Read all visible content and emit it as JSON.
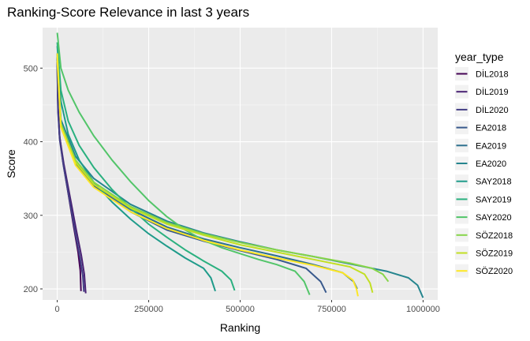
{
  "chart_data": {
    "type": "line",
    "title": "Ranking-Score Relevance in last 3 years",
    "xlabel": "Ranking",
    "ylabel": "Score",
    "xlim": [
      -40000,
      1040000
    ],
    "ylim": [
      185,
      555
    ],
    "x_ticks": [
      0,
      250000,
      500000,
      750000,
      1000000
    ],
    "x_tick_labels": [
      "0",
      "250000",
      "500000",
      "750000",
      "1000000"
    ],
    "y_ticks": [
      200,
      300,
      400,
      500
    ],
    "y_tick_labels": [
      "200",
      "300",
      "400",
      "500"
    ],
    "grid": true,
    "legend_title": "year_type",
    "legend_position": "right",
    "series": [
      {
        "name": "DİL2018",
        "color": "#440154",
        "max_rank": 65000,
        "start_score": 515,
        "end_score": 197,
        "points": [
          [
            0,
            515
          ],
          [
            2000,
            450
          ],
          [
            6000,
            410
          ],
          [
            15000,
            375
          ],
          [
            30000,
            330
          ],
          [
            45000,
            285
          ],
          [
            57000,
            250
          ],
          [
            63000,
            225
          ],
          [
            65000,
            197
          ]
        ]
      },
      {
        "name": "DİL2019",
        "color": "#482173",
        "max_rank": 78000,
        "start_score": 510,
        "end_score": 194,
        "points": [
          [
            0,
            510
          ],
          [
            2000,
            445
          ],
          [
            7000,
            405
          ],
          [
            18000,
            370
          ],
          [
            35000,
            325
          ],
          [
            52000,
            280
          ],
          [
            66000,
            245
          ],
          [
            74000,
            220
          ],
          [
            78000,
            194
          ]
        ]
      },
      {
        "name": "DİL2020",
        "color": "#433e85",
        "max_rank": 73000,
        "start_score": 505,
        "end_score": 196,
        "points": [
          [
            0,
            505
          ],
          [
            2000,
            440
          ],
          [
            7000,
            402
          ],
          [
            17000,
            368
          ],
          [
            33000,
            322
          ],
          [
            49000,
            277
          ],
          [
            62000,
            243
          ],
          [
            70000,
            218
          ],
          [
            73000,
            196
          ]
        ]
      },
      {
        "name": "EA2018",
        "color": "#38598c",
        "max_rank": 735000,
        "start_score": 515,
        "end_score": 195,
        "points": [
          [
            0,
            515
          ],
          [
            10000,
            420
          ],
          [
            50000,
            370
          ],
          [
            100000,
            340
          ],
          [
            200000,
            305
          ],
          [
            300000,
            280
          ],
          [
            400000,
            265
          ],
          [
            500000,
            252
          ],
          [
            600000,
            240
          ],
          [
            680000,
            228
          ],
          [
            720000,
            210
          ],
          [
            735000,
            195
          ]
        ]
      },
      {
        "name": "EA2019",
        "color": "#2d708e",
        "max_rank": 820000,
        "start_score": 520,
        "end_score": 200,
        "points": [
          [
            0,
            520
          ],
          [
            10000,
            425
          ],
          [
            50000,
            372
          ],
          [
            100000,
            342
          ],
          [
            200000,
            308
          ],
          [
            300000,
            284
          ],
          [
            400000,
            268
          ],
          [
            500000,
            256
          ],
          [
            600000,
            245
          ],
          [
            700000,
            233
          ],
          [
            780000,
            222
          ],
          [
            810000,
            210
          ],
          [
            820000,
            200
          ]
        ]
      },
      {
        "name": "EA2020",
        "color": "#25858e",
        "max_rank": 1000000,
        "start_score": 520,
        "end_score": 188,
        "points": [
          [
            0,
            520
          ],
          [
            10000,
            430
          ],
          [
            50000,
            380
          ],
          [
            100000,
            350
          ],
          [
            200000,
            315
          ],
          [
            300000,
            292
          ],
          [
            400000,
            276
          ],
          [
            500000,
            264
          ],
          [
            600000,
            253
          ],
          [
            700000,
            244
          ],
          [
            800000,
            234
          ],
          [
            900000,
            224
          ],
          [
            960000,
            215
          ],
          [
            985000,
            205
          ],
          [
            1000000,
            188
          ]
        ]
      },
      {
        "name": "SAY2018",
        "color": "#1e9b8a",
        "max_rank": 432000,
        "start_score": 530,
        "end_score": 197,
        "points": [
          [
            0,
            530
          ],
          [
            10000,
            455
          ],
          [
            30000,
            410
          ],
          [
            60000,
            375
          ],
          [
            100000,
            345
          ],
          [
            150000,
            318
          ],
          [
            200000,
            295
          ],
          [
            250000,
            275
          ],
          [
            300000,
            258
          ],
          [
            350000,
            242
          ],
          [
            400000,
            228
          ],
          [
            420000,
            215
          ],
          [
            432000,
            197
          ]
        ]
      },
      {
        "name": "SAY2019",
        "color": "#2ab07f",
        "max_rank": 485000,
        "start_score": 535,
        "end_score": 198,
        "points": [
          [
            0,
            535
          ],
          [
            10000,
            470
          ],
          [
            30000,
            428
          ],
          [
            60000,
            395
          ],
          [
            100000,
            365
          ],
          [
            150000,
            335
          ],
          [
            200000,
            310
          ],
          [
            250000,
            288
          ],
          [
            300000,
            270
          ],
          [
            350000,
            253
          ],
          [
            400000,
            238
          ],
          [
            450000,
            224
          ],
          [
            475000,
            212
          ],
          [
            485000,
            198
          ]
        ]
      },
      {
        "name": "SAY2020",
        "color": "#52c569",
        "max_rank": 690000,
        "start_score": 548,
        "end_score": 192,
        "points": [
          [
            0,
            548
          ],
          [
            10000,
            500
          ],
          [
            30000,
            470
          ],
          [
            60000,
            440
          ],
          [
            100000,
            408
          ],
          [
            150000,
            375
          ],
          [
            200000,
            346
          ],
          [
            250000,
            320
          ],
          [
            300000,
            298
          ],
          [
            350000,
            280
          ],
          [
            400000,
            266
          ],
          [
            450000,
            256
          ],
          [
            500000,
            248
          ],
          [
            550000,
            240
          ],
          [
            600000,
            233
          ],
          [
            650000,
            224
          ],
          [
            675000,
            210
          ],
          [
            690000,
            192
          ]
        ]
      },
      {
        "name": "SÖZ2018",
        "color": "#86d549",
        "max_rank": 905000,
        "start_score": 515,
        "end_score": 210,
        "points": [
          [
            0,
            515
          ],
          [
            10000,
            425
          ],
          [
            50000,
            375
          ],
          [
            100000,
            345
          ],
          [
            200000,
            312
          ],
          [
            300000,
            290
          ],
          [
            400000,
            275
          ],
          [
            500000,
            263
          ],
          [
            600000,
            253
          ],
          [
            700000,
            244
          ],
          [
            800000,
            235
          ],
          [
            860000,
            228
          ],
          [
            890000,
            220
          ],
          [
            905000,
            210
          ]
        ]
      },
      {
        "name": "SÖZ2019",
        "color": "#c2df23",
        "max_rank": 862000,
        "start_score": 510,
        "end_score": 195,
        "points": [
          [
            0,
            510
          ],
          [
            10000,
            420
          ],
          [
            50000,
            372
          ],
          [
            100000,
            342
          ],
          [
            200000,
            310
          ],
          [
            300000,
            288
          ],
          [
            400000,
            273
          ],
          [
            500000,
            260
          ],
          [
            600000,
            250
          ],
          [
            700000,
            240
          ],
          [
            800000,
            230
          ],
          [
            840000,
            220
          ],
          [
            855000,
            208
          ],
          [
            862000,
            195
          ]
        ]
      },
      {
        "name": "SÖZ2020",
        "color": "#fde725",
        "max_rank": 822000,
        "start_score": 520,
        "end_score": 190,
        "points": [
          [
            0,
            520
          ],
          [
            10000,
            420
          ],
          [
            50000,
            368
          ],
          [
            100000,
            338
          ],
          [
            200000,
            305
          ],
          [
            300000,
            282
          ],
          [
            400000,
            266
          ],
          [
            500000,
            253
          ],
          [
            600000,
            242
          ],
          [
            700000,
            232
          ],
          [
            780000,
            222
          ],
          [
            808000,
            212
          ],
          [
            818000,
            200
          ],
          [
            822000,
            190
          ]
        ]
      }
    ]
  }
}
